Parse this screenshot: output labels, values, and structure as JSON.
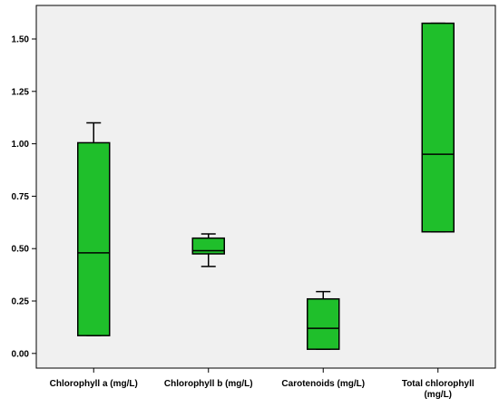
{
  "chart_data": {
    "type": "box",
    "title": "",
    "xlabel": "",
    "ylabel": "",
    "ylim": [
      -0.07,
      1.66
    ],
    "yticks": [
      0.0,
      0.25,
      0.5,
      0.75,
      1.0,
      1.25,
      1.5
    ],
    "ytick_labels": [
      "0.00",
      "0.25",
      "0.50",
      "0.75",
      "1.00",
      "1.25",
      "1.50"
    ],
    "grid": false,
    "legend": "none",
    "colors": {
      "box_fill": "#1fbf2b",
      "stroke": "#000000",
      "plot_bg": "#f0f0f0"
    },
    "categories": [
      {
        "label_lines": [
          "Chlorophyll a (mg/L)"
        ],
        "min": 0.085,
        "q1": 0.085,
        "median": 0.48,
        "q3": 1.005,
        "max": 1.1
      },
      {
        "label_lines": [
          "Chlorophyll b (mg/L)"
        ],
        "min": 0.415,
        "q1": 0.475,
        "median": 0.49,
        "q3": 0.55,
        "max": 0.57
      },
      {
        "label_lines": [
          "Carotenoids (mg/L)"
        ],
        "min": 0.02,
        "q1": 0.02,
        "median": 0.12,
        "q3": 0.26,
        "max": 0.295
      },
      {
        "label_lines": [
          "Total chlorophyll",
          "(mg/L)"
        ],
        "min": 0.58,
        "q1": 0.58,
        "median": 0.95,
        "q3": 1.575,
        "max": 1.575
      }
    ]
  }
}
